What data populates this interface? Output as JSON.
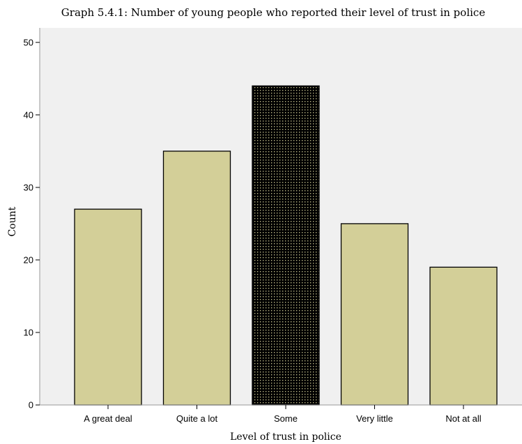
{
  "chart_data": {
    "type": "bar",
    "title": "Graph 5.4.1: Number of young people who reported their level of trust in police",
    "xlabel": "Level of trust in police",
    "ylabel": "Count",
    "categories": [
      "A great deal",
      "Quite a lot",
      "Some",
      "Very little",
      "Not at all"
    ],
    "values": [
      27,
      35,
      44,
      25,
      19
    ],
    "ylim": [
      0,
      52
    ],
    "yticks": [
      0,
      10,
      20,
      30,
      40,
      50
    ],
    "grid": false,
    "highlighted_category": "Some",
    "colors": {
      "bar_fill": "#d3cf98",
      "highlight_fill": "#000000",
      "highlight_pattern": "#d3cf98",
      "bar_stroke": "#000000",
      "plot_background": "#f0f0f0"
    }
  }
}
